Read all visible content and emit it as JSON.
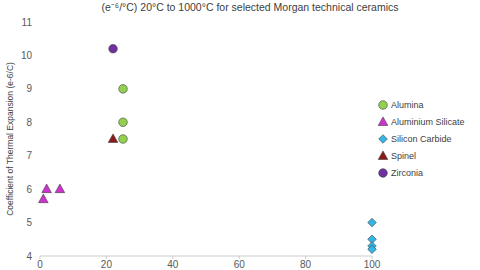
{
  "chart_data": {
    "type": "scatter",
    "title": "(e⁻⁶/°C) 20°C to 1000°C for selected Morgan technical ceramics",
    "y_label": "Coefficient of Thermal Expansion (e-6/C)",
    "xlim": [
      0,
      100
    ],
    "xticks": [
      0,
      20,
      40,
      60,
      80,
      100
    ],
    "ylim": [
      4,
      11
    ],
    "yticks": [
      4,
      5,
      6,
      7,
      8,
      9,
      10,
      11
    ],
    "grid": false,
    "legend": "right",
    "series": [
      {
        "name": "Alumina",
        "color": "#92d050",
        "marker": "circle",
        "x": [
          25,
          25,
          25
        ],
        "values": [
          9,
          8,
          7.5
        ]
      },
      {
        "name": "Aluminium Silicate",
        "color": "#cc33cc",
        "marker": "triangle",
        "x": [
          1,
          2,
          6
        ],
        "values": [
          5.7,
          6,
          6
        ]
      },
      {
        "name": "Silicon Carbide",
        "color": "#33b5e5",
        "marker": "diamond",
        "x": [
          100,
          100,
          100,
          100
        ],
        "values": [
          5,
          4.5,
          4.3,
          4.2
        ]
      },
      {
        "name": "Spinel",
        "color": "#8b1a1a",
        "marker": "triangle",
        "x": [
          22
        ],
        "values": [
          7.5
        ]
      },
      {
        "name": "Zirconia",
        "color": "#7030a0",
        "marker": "circle",
        "x": [
          22
        ],
        "values": [
          10.2
        ]
      }
    ]
  }
}
